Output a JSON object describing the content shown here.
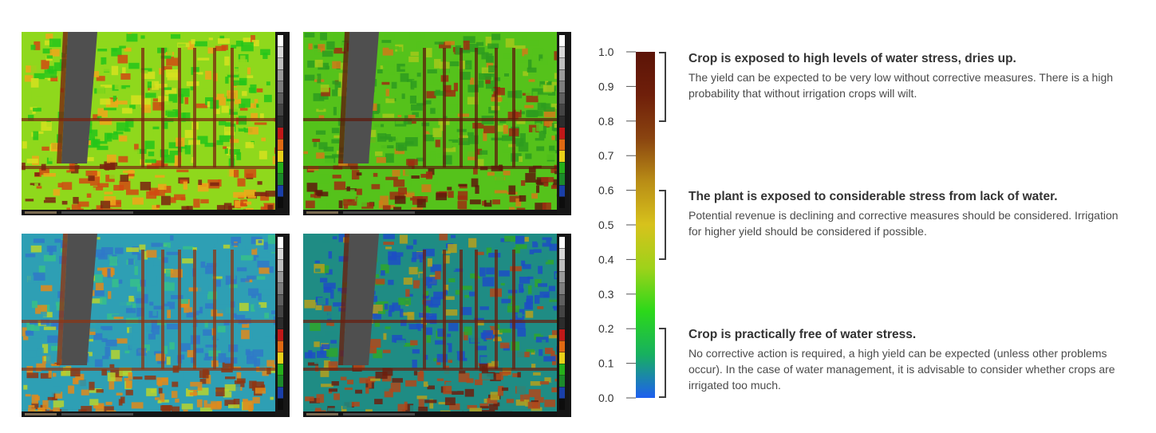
{
  "scale": {
    "ticks": [
      "1.0",
      "0.9",
      "0.8",
      "0.7",
      "0.6",
      "0.5",
      "0.4",
      "0.3",
      "0.2",
      "0.1",
      "0.0"
    ],
    "colors": [
      "#1e5ff0",
      "#17b060",
      "#2cd81a",
      "#9ed21a",
      "#d7c21c",
      "#b98d16",
      "#8a4410",
      "#6f1f0a",
      "#5c1408"
    ]
  },
  "levels": [
    {
      "heading": "Crop is exposed to high levels of water stress, dries up.",
      "text": "The yield can be expected to be very low without corrective measures. There is a high probability that without irrigation crops will wilt."
    },
    {
      "heading": "The plant is exposed to considerable stress from lack of water.",
      "text": "Potential revenue is declining and corrective measures should be considered. Irrigation for higher yield should be considered if possible."
    },
    {
      "heading": "Crop is practically free of water stress.",
      "text": "No corrective action is required, a high yield can be expected (unless other problems occur). In the case of water management, it is advisable to consider whether crops are irrigated too much."
    }
  ],
  "thermal_images": [
    {
      "name": "top-left",
      "palette": [
        "#25c51a",
        "#8fd81c",
        "#d6e21e",
        "#f0a71a",
        "#d14a12",
        "#7b2310",
        "#4f4f4f"
      ]
    },
    {
      "name": "top-right",
      "palette": [
        "#2e9c1e",
        "#55c21b",
        "#a3c91a",
        "#d17a17",
        "#9d2e10",
        "#5e1a0c",
        "#4f4f4f"
      ]
    },
    {
      "name": "bottom-left",
      "palette": [
        "#2f78c8",
        "#2e9fb4",
        "#36c08a",
        "#b7d32e",
        "#e08a1b",
        "#8f3512",
        "#4f4f4f"
      ]
    },
    {
      "name": "bottom-right",
      "palette": [
        "#1d4ec4",
        "#1f8c84",
        "#2fa62a",
        "#b5a01c",
        "#b1481a",
        "#6b1e0e",
        "#4f4f4f"
      ]
    }
  ]
}
